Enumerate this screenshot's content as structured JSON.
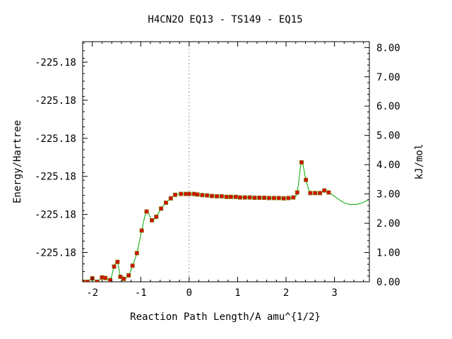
{
  "chart_data": {
    "type": "line",
    "title": "H4CN2O   EQ13 - TS149 - EQ15",
    "xlabel": "Reaction Path Length/A amu^{1/2}",
    "ylabel": "Energy/Hartree",
    "y2label": "kJ/mol",
    "xlim": [
      -2.2,
      3.72
    ],
    "ylim": [
      0.0,
      8.2
    ],
    "y_axis_unit": "kJ/mol",
    "x_ticks": [
      -2,
      -1,
      0,
      1,
      2,
      3
    ],
    "x_tick_labels": [
      "-2",
      "-1",
      "0",
      "1",
      "2",
      "3"
    ],
    "y_left_ticks": [
      1.0,
      2.3,
      3.6,
      4.9,
      6.2,
      7.5
    ],
    "y_left_tick_labels": [
      "-225.18",
      "-225.18",
      "-225.18",
      "-225.18",
      "-225.18",
      "-225.18"
    ],
    "y_right_ticks": [
      0,
      1,
      2,
      3,
      4,
      5,
      6,
      7,
      8
    ],
    "y_right_tick_labels": [
      "0.00",
      "1.00",
      "2.00",
      "3.00",
      "4.00",
      "5.00",
      "6.00",
      "7.00",
      "8.00"
    ],
    "ts_marker_x": 0,
    "grid": false,
    "colors": {
      "curve": "#00aa00",
      "marker_fill": "#dd0000",
      "marker_edge": "#886600",
      "ts_line": "#999999",
      "axis": "#000000"
    },
    "series": [
      {
        "x": [
          -2.19,
          -2.1,
          -2.0,
          -1.9,
          -1.8,
          -1.73,
          -1.63,
          -1.55,
          -1.48,
          -1.42,
          -1.35,
          -1.25,
          -1.17,
          -1.08,
          -0.98,
          -0.88,
          -0.77,
          -0.68,
          -0.58,
          -0.48,
          -0.38,
          -0.29,
          -0.17,
          -0.07,
          0.0,
          0.1,
          0.17,
          0.27,
          0.37,
          0.47,
          0.57,
          0.67,
          0.77,
          0.86,
          0.96,
          1.05,
          1.15,
          1.25,
          1.35,
          1.45,
          1.55,
          1.65,
          1.75,
          1.85,
          1.95,
          2.05,
          2.15,
          2.23,
          2.32,
          2.41,
          2.5,
          2.6,
          2.7,
          2.79,
          2.88
        ],
        "y": [
          0.0,
          0.0,
          0.12,
          0.0,
          0.15,
          0.13,
          0.06,
          0.52,
          0.68,
          0.17,
          0.1,
          0.22,
          0.55,
          0.98,
          1.75,
          2.4,
          2.1,
          2.22,
          2.5,
          2.7,
          2.85,
          2.97,
          3.0,
          3.0,
          3.0,
          3.0,
          2.98,
          2.96,
          2.95,
          2.93,
          2.92,
          2.92,
          2.9,
          2.9,
          2.9,
          2.88,
          2.88,
          2.88,
          2.87,
          2.87,
          2.87,
          2.86,
          2.86,
          2.86,
          2.85,
          2.86,
          2.88,
          3.05,
          4.08,
          3.48,
          3.03,
          3.03,
          3.03,
          3.12,
          3.05
        ]
      }
    ],
    "curve_extension": {
      "x": [
        2.88,
        3.0,
        3.1,
        3.2,
        3.3,
        3.4,
        3.5,
        3.6,
        3.72
      ],
      "y": [
        3.05,
        2.92,
        2.8,
        2.7,
        2.65,
        2.64,
        2.66,
        2.72,
        2.82
      ]
    }
  }
}
